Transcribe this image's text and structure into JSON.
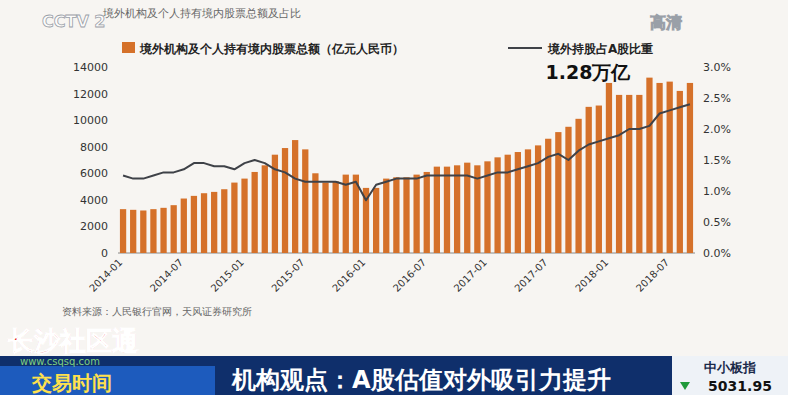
{
  "chart_data": {
    "type": "bar",
    "title": "境外机构及个人持有境内股票总额及占比",
    "annotations": [
      "1.28万亿"
    ],
    "source": "资料来源：人民银行官网，天风证券研究所",
    "categories": [
      "2014-01",
      null,
      null,
      null,
      null,
      null,
      "2014-07",
      null,
      null,
      null,
      null,
      null,
      "2015-01",
      null,
      null,
      null,
      null,
      null,
      "2015-07",
      null,
      null,
      null,
      null,
      null,
      "2016-01",
      null,
      null,
      null,
      null,
      null,
      "2016-07",
      null,
      null,
      null,
      null,
      null,
      "2017-01",
      null,
      null,
      null,
      null,
      null,
      "2017-07",
      null,
      null,
      null,
      null,
      null,
      "2018-01",
      null,
      null,
      null,
      null,
      null,
      "2018-07",
      null,
      null
    ],
    "series": [
      {
        "name": "境外机构及个人持有境内股票总额（亿元人民币）",
        "type": "bar",
        "color": "#d5712a",
        "values": [
          3300,
          3250,
          3200,
          3300,
          3400,
          3600,
          4100,
          4300,
          4500,
          4600,
          4800,
          5300,
          5600,
          6100,
          6600,
          7400,
          7900,
          8500,
          7800,
          6000,
          5300,
          5400,
          5900,
          5900,
          4900,
          4900,
          5600,
          5700,
          5700,
          5900,
          6100,
          6500,
          6500,
          6600,
          6800,
          6600,
          6900,
          7200,
          7400,
          7600,
          7800,
          8100,
          8600,
          9100,
          9500,
          10100,
          11000,
          11100,
          12800,
          11900,
          11900,
          11900,
          13200,
          12800,
          12900,
          12200,
          12800
        ]
      },
      {
        "name": "境外持股占A股比重",
        "type": "line",
        "axis": "y2",
        "color": "#3f4248",
        "values": [
          1.25,
          1.2,
          1.2,
          1.25,
          1.3,
          1.3,
          1.35,
          1.45,
          1.45,
          1.4,
          1.4,
          1.35,
          1.45,
          1.5,
          1.45,
          1.35,
          1.3,
          1.2,
          1.15,
          1.15,
          1.15,
          1.15,
          1.1,
          1.15,
          0.85,
          1.1,
          1.15,
          1.2,
          1.2,
          1.2,
          1.25,
          1.25,
          1.25,
          1.25,
          1.25,
          1.2,
          1.25,
          1.3,
          1.3,
          1.35,
          1.4,
          1.45,
          1.55,
          1.6,
          1.5,
          1.65,
          1.75,
          1.8,
          1.85,
          1.9,
          2.0,
          2.0,
          2.05,
          2.25,
          2.3,
          2.35,
          2.4
        ]
      }
    ],
    "ylim": [
      0,
      14000
    ],
    "yticks": [
      0,
      2000,
      4000,
      6000,
      8000,
      10000,
      12000,
      14000
    ],
    "y2lim": [
      0,
      3
    ],
    "y2ticks": [
      {
        "value": 0,
        "label": "0.0%"
      },
      {
        "value": 0.5,
        "label": "0.5%"
      },
      {
        "value": 1,
        "label": "1.0%"
      },
      {
        "value": 1.5,
        "label": "1.5%"
      },
      {
        "value": 2,
        "label": "2.0%"
      },
      {
        "value": 2.5,
        "label": "2.5%"
      },
      {
        "value": 3,
        "label": "3.0%"
      }
    ],
    "grid": false,
    "legend": "top"
  },
  "broadcast": {
    "channel": "CCTV 2",
    "hd": "高清",
    "program": "交易时间",
    "headline": "机构观点：A股估值对外吸引力提升",
    "index_name": "中小板指",
    "index_value": 5031.95,
    "watermark": "长沙社区通",
    "watermark_url": "www.csqsq.com"
  }
}
